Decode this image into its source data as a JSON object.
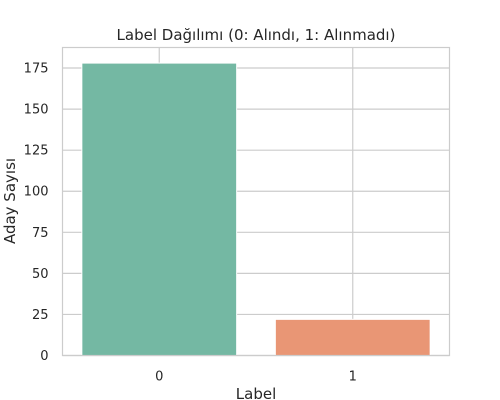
{
  "chart_data": {
    "type": "bar",
    "title": "Label Dağılımı (0: Alındı, 1: Alınmadı)",
    "xlabel": "Label",
    "ylabel": "Aday Sayısı",
    "categories": [
      "0",
      "1"
    ],
    "values": [
      178,
      22
    ],
    "ylim": [
      0,
      187.5
    ],
    "yticks": [
      0,
      25,
      50,
      75,
      100,
      125,
      150,
      175
    ],
    "grid": true,
    "legend": "none",
    "colors": [
      "#74b8a3",
      "#e99675"
    ]
  },
  "colors": {
    "grid": "#cccccc",
    "frame": "#cccccc",
    "text": "#262626",
    "background": "#ffffff"
  }
}
